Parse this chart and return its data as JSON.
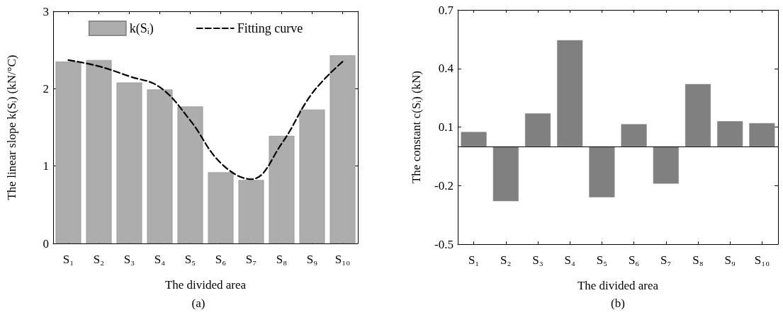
{
  "chart_data": [
    {
      "type": "bar",
      "xlabel": "The divided area",
      "ylabel": "The linear slope k(Sᵢ) (kN/°C)",
      "annotations": [
        "(a)"
      ],
      "categories": [
        "S₁",
        "S₂",
        "S₃",
        "S₄",
        "S₅",
        "S₆",
        "S₇",
        "S₈",
        "S₉",
        "S₁₀"
      ],
      "ylim": [
        0,
        3
      ],
      "yticks": [
        0,
        1,
        2,
        3
      ],
      "grid": false,
      "legend": "top",
      "series": [
        {
          "name": "k(Sᵢ)",
          "color": "#adadad",
          "values": [
            2.35,
            2.37,
            2.08,
            1.99,
            1.77,
            0.92,
            0.82,
            1.39,
            1.73,
            2.43
          ]
        },
        {
          "name": "Fitting curve",
          "type": "line",
          "color": "#000000",
          "line_style": "dashed",
          "marker": "none",
          "values": [
            2.37,
            2.29,
            2.16,
            2.02,
            1.59,
            1.04,
            0.83,
            1.29,
            1.94,
            2.35
          ]
        }
      ]
    },
    {
      "type": "bar",
      "xlabel": "The divided area",
      "ylabel": "The constant c(Sᵢ) (kN)",
      "annotations": [
        "(b)"
      ],
      "categories": [
        "S₁",
        "S₂",
        "S₃",
        "S₄",
        "S₅",
        "S₆",
        "S₇",
        "S₈",
        "S₉",
        "S₁₀"
      ],
      "ylim": [
        -0.5,
        0.7
      ],
      "yticks": [
        -0.5,
        -0.2,
        0.1,
        0.4,
        0.7
      ],
      "grid": false,
      "series": [
        {
          "color": "#808080",
          "values": [
            0.075,
            -0.28,
            0.17,
            0.545,
            -0.26,
            0.115,
            -0.19,
            0.32,
            0.13,
            0.12
          ]
        }
      ],
      "ref_lines": [
        {
          "axis": "y",
          "value": 0,
          "color": "#000000"
        }
      ]
    }
  ]
}
